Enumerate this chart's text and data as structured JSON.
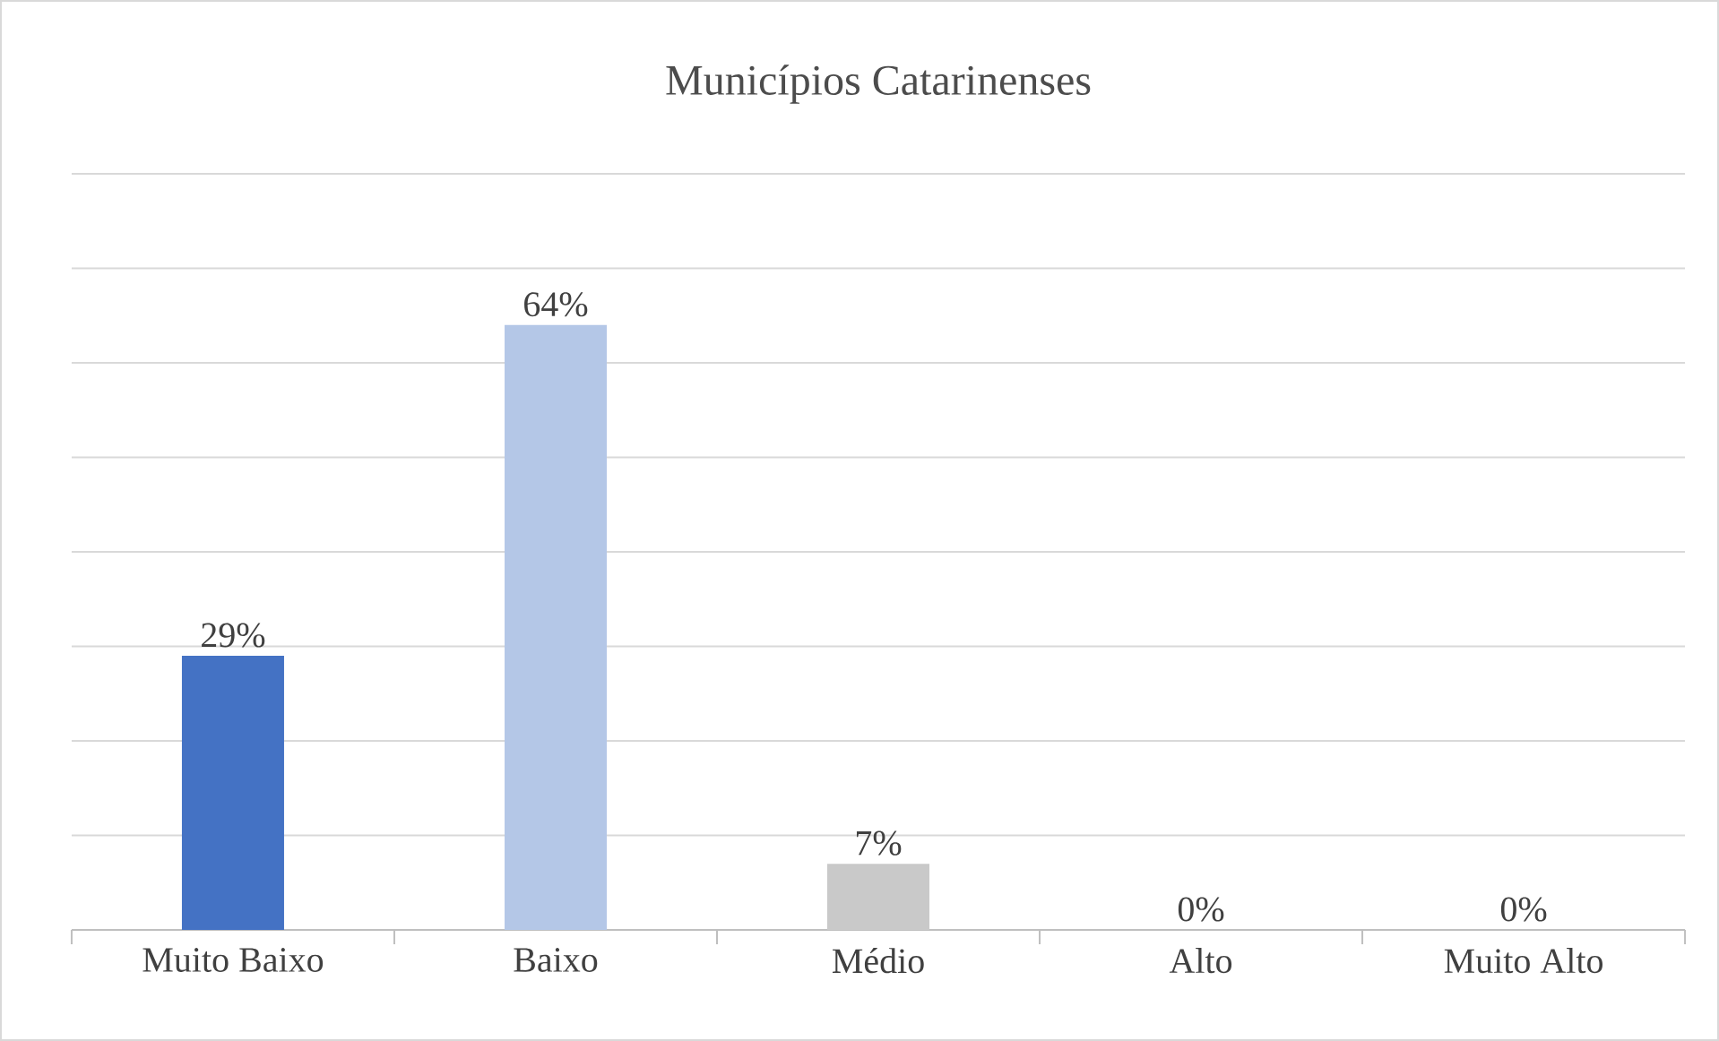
{
  "chart_data": {
    "type": "bar",
    "title": "Municípios Catarinenses",
    "categories": [
      "Muito Baixo",
      "Baixo",
      "Médio",
      "Alto",
      "Muito Alto"
    ],
    "values": [
      29,
      64,
      7,
      0,
      0
    ],
    "colors": [
      "#4472c4",
      "#b4c7e7",
      "#c9c9c9",
      "#a5a5a5",
      "#ffc000"
    ],
    "value_labels": [
      "29%",
      "64%",
      "7%",
      "0%",
      "0%"
    ],
    "ylim": [
      0,
      80
    ],
    "tick_labels": "x",
    "grid": "y"
  }
}
